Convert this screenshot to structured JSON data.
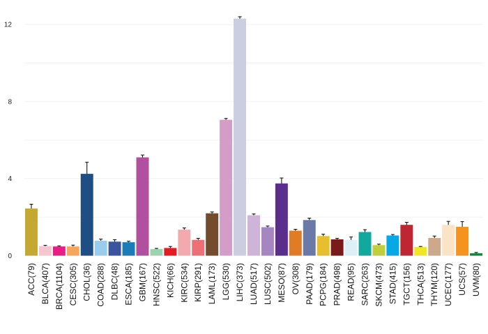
{
  "chart_data": {
    "type": "bar",
    "title": "",
    "xlabel": "",
    "ylabel": "",
    "ylim": [
      0,
      12.6
    ],
    "yticks": [
      0,
      4,
      8,
      12
    ],
    "grid": true,
    "categories": [
      "ACC(79)",
      "BLCA(407)",
      "BRCA(1104)",
      "CESC(305)",
      "CHOL(36)",
      "COAD(288)",
      "DLBC(48)",
      "ESCA(185)",
      "GBM(167)",
      "HNSC(522)",
      "KICH(66)",
      "KIRC(534)",
      "KIRP(291)",
      "LAML(173)",
      "LGG(530)",
      "LIHC(373)",
      "LUAD(517)",
      "LUSC(502)",
      "MESO(87)",
      "OV(308)",
      "PAAD(179)",
      "PCPG(184)",
      "PRAD(498)",
      "READ(95)",
      "SARC(263)",
      "SKCM(473)",
      "STAD(415)",
      "TGCT(156)",
      "THCA(513)",
      "THYM(120)",
      "UCEC(177)",
      "UCS(57)",
      "UVM(80)"
    ],
    "values": [
      2.45,
      0.5,
      0.48,
      0.48,
      4.25,
      0.78,
      0.73,
      0.7,
      5.1,
      0.35,
      0.4,
      1.35,
      0.82,
      2.2,
      7.05,
      12.3,
      2.1,
      1.48,
      3.75,
      1.3,
      1.85,
      1.02,
      0.85,
      0.82,
      1.23,
      0.55,
      1.05,
      1.6,
      0.45,
      0.92,
      1.6,
      1.5,
      0.13
    ],
    "errors": [
      0.22,
      0.04,
      0.03,
      0.07,
      0.6,
      0.08,
      0.1,
      0.05,
      0.12,
      0.03,
      0.08,
      0.09,
      0.08,
      0.07,
      0.07,
      0.1,
      0.07,
      0.06,
      0.28,
      0.07,
      0.1,
      0.1,
      0.05,
      0.15,
      0.12,
      0.05,
      0.05,
      0.13,
      0.03,
      0.1,
      0.18,
      0.27,
      0.04
    ],
    "colors": [
      "#C4A832",
      "#F5C6D0",
      "#E61E86",
      "#F5A65B",
      "#1F4E84",
      "#9ACDEB",
      "#3A55A0",
      "#1B7DB8",
      "#B24F9E",
      "#9ED3B0",
      "#E51B24",
      "#F2AAAE",
      "#EE6F75",
      "#744B2C",
      "#D49DC8",
      "#CBCDE0",
      "#CFB3D8",
      "#A585C2",
      "#5A2E8C",
      "#E07C26",
      "#6B79A8",
      "#E7BE2D",
      "#7B1A1B",
      "#DDEFF7",
      "#12A89D",
      "#C2CF3D",
      "#06A8E6",
      "#BF2633",
      "#F2E524",
      "#CCA98A",
      "#FAE3C6",
      "#F6921E",
      "#0E8A3E"
    ]
  }
}
